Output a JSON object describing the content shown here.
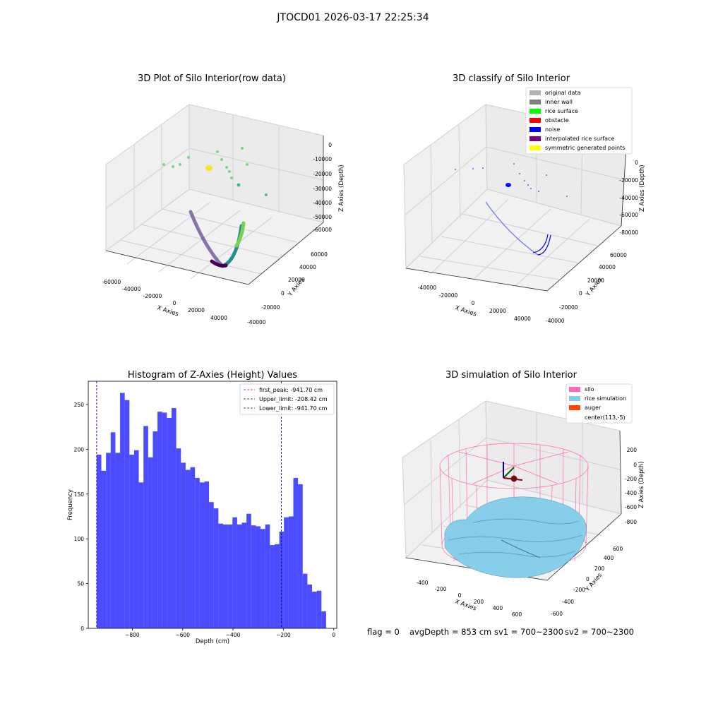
{
  "suptitle": "JTOCD01 2026-03-17 22:25:34",
  "panels": {
    "raw": {
      "title": "3D Plot of Silo Interior(row data)",
      "x_ticks": [
        "-60000",
        "-40000",
        "-20000",
        "0",
        "20000",
        "40000"
      ],
      "y_ticks": [
        "-40000",
        "-20000",
        "0",
        "20000",
        "40000",
        "60000"
      ],
      "z_ticks": [
        "0",
        "-10000",
        "-20000",
        "-30000",
        "-40000",
        "-50000",
        "-60000"
      ],
      "xlabel": "X Axies",
      "ylabel": "Y Axies",
      "zlabel": "Z Axies (Depth)"
    },
    "classify": {
      "title": "3D classify of Silo Interior",
      "x_ticks": [
        "-40000",
        "-20000",
        "0",
        "20000",
        "40000"
      ],
      "y_ticks": [
        "-40000",
        "-20000",
        "0",
        "20000",
        "40000",
        "60000"
      ],
      "z_ticks": [
        "0",
        "-20000",
        "-40000",
        "-60000",
        "-80000"
      ],
      "xlabel": "X Axies",
      "ylabel": "Y Axies",
      "zlabel": "Z Axies (Depth)",
      "legend": [
        {
          "label": "original data",
          "color": "#b3b3b3"
        },
        {
          "label": "inner wall",
          "color": "#808080"
        },
        {
          "label": "rice surface",
          "color": "#00ff00"
        },
        {
          "label": "obstacle",
          "color": "#ff0000"
        },
        {
          "label": "noise",
          "color": "#0000ff"
        },
        {
          "label": "interpolated rice surface",
          "color": "#800080"
        },
        {
          "label": "symmetric generated points",
          "color": "#ffff00"
        }
      ]
    },
    "simulation": {
      "title": "3D simulation of Silo Interior",
      "x_ticks": [
        "-400",
        "-200",
        "0",
        "200",
        "400",
        "600"
      ],
      "y_ticks": [
        "-600",
        "-400",
        "-200",
        "0",
        "200",
        "400",
        "600"
      ],
      "z_ticks": [
        "200",
        "0",
        "-200",
        "-400",
        "-600",
        "-800"
      ],
      "xlabel": "X Axies",
      "ylabel": "Y Axies",
      "zlabel": "Z Axies (Depth)",
      "legend": [
        {
          "label": "silo",
          "color": "#ff69b4"
        },
        {
          "label": "rice simulation",
          "color": "#87ceeb"
        },
        {
          "label": "auger",
          "color": "#ff4500"
        },
        {
          "label": "center(113,-5)",
          "color": "none"
        }
      ]
    }
  },
  "chart_data": {
    "type": "bar",
    "title": "Histogram of Z-Axies (Height) Values",
    "xlabel": "Depth (cm)",
    "ylabel": "Frequency",
    "xlim": [
      -975,
      12
    ],
    "ylim": [
      0,
      276
    ],
    "x_ticks": [
      -800,
      -600,
      -400,
      -200,
      0
    ],
    "y_ticks": [
      0,
      50,
      100,
      150,
      200,
      250
    ],
    "bin_start": -941.7,
    "bin_width": 18.6,
    "values": [
      194,
      176,
      196,
      219,
      196,
      263,
      255,
      194,
      199,
      163,
      226,
      191,
      220,
      242,
      241,
      235,
      246,
      201,
      185,
      177,
      180,
      168,
      163,
      164,
      141,
      134,
      117,
      116,
      116,
      124,
      116,
      118,
      128,
      115,
      114,
      111,
      116,
      93,
      94,
      108,
      124,
      125,
      168,
      161,
      61,
      49,
      41,
      42,
      19
    ],
    "bar_color": "#0000ff",
    "vlines": [
      {
        "label": "first_peak: -941.70 cm",
        "x": -941.7,
        "color": "#ff0000"
      },
      {
        "label": "Upper_limit: -208.42 cm",
        "x": -208.42,
        "color": "#00008b"
      },
      {
        "label": "Lower_limit: -941.70 cm",
        "x": -941.7,
        "color": "#0000ff"
      }
    ]
  },
  "footer": {
    "flag": "flag = 0",
    "avg_depth": "avgDepth = 853 cm",
    "sv1": "sv1 = 700~2300",
    "sv2": "sv2 = 700~2300"
  }
}
